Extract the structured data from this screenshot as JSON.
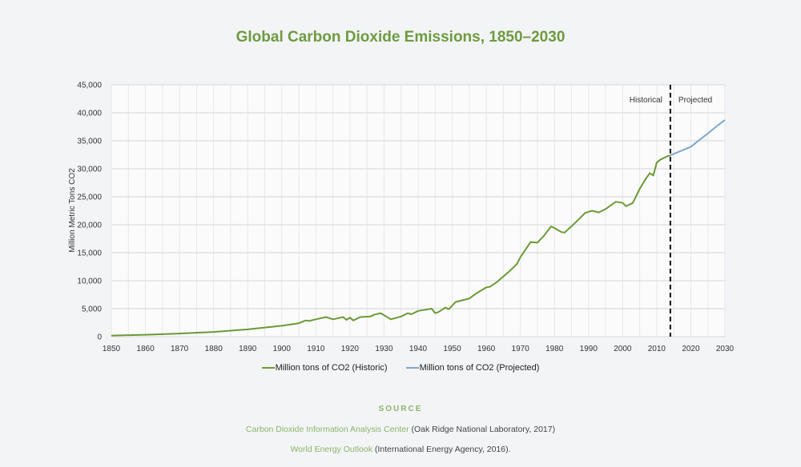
{
  "chart_data": {
    "type": "line",
    "title": "Global Carbon Dioxide Emissions, 1850–2030",
    "xlabel": "",
    "ylabel": "Million Metric Tons CO2",
    "xlim": [
      1850,
      2030
    ],
    "ylim": [
      0,
      45000
    ],
    "x_ticks": [
      "1850",
      "1860",
      "1870",
      "1880",
      "1890",
      "1900",
      "1910",
      "1920",
      "1930",
      "1940",
      "1950",
      "1960",
      "1970",
      "1980",
      "1990",
      "2000",
      "2010",
      "2020",
      "2030"
    ],
    "y_ticks": [
      "0",
      "5,000",
      "10,000",
      "15,000",
      "20,000",
      "25,000",
      "30,000",
      "35,000",
      "40,000",
      "45,000"
    ],
    "grid": true,
    "legend_position": "bottom",
    "annotations": {
      "divider_year": 2014,
      "left_label": "Historical",
      "right_label": "Projected"
    },
    "series": [
      {
        "name": "Million tons of CO2 (Historic)",
        "color": "#6b9a35",
        "x": [
          1850,
          1860,
          1870,
          1880,
          1890,
          1900,
          1905,
          1907,
          1908,
          1910,
          1913,
          1915,
          1918,
          1919,
          1920,
          1921,
          1923,
          1926,
          1927,
          1929,
          1932,
          1935,
          1937,
          1938,
          1940,
          1944,
          1945,
          1946,
          1948,
          1949,
          1951,
          1955,
          1957,
          1960,
          1961,
          1963,
          1967,
          1969,
          1970,
          1973,
          1975,
          1977,
          1979,
          1980,
          1982,
          1983,
          1986,
          1989,
          1991,
          1993,
          1995,
          1998,
          2000,
          2001,
          2003,
          2005,
          2007,
          2008,
          2009,
          2010,
          2011,
          2013,
          2014
        ],
        "y": [
          200,
          350,
          550,
          850,
          1300,
          1950,
          2400,
          2900,
          2800,
          3100,
          3500,
          3100,
          3500,
          3000,
          3400,
          2900,
          3500,
          3600,
          3900,
          4200,
          3100,
          3600,
          4200,
          4000,
          4600,
          5000,
          4200,
          4400,
          5200,
          4900,
          6200,
          6800,
          7700,
          8800,
          8900,
          9700,
          11800,
          13000,
          14200,
          16900,
          16800,
          18100,
          19700,
          19400,
          18700,
          18600,
          20300,
          22100,
          22500,
          22200,
          22800,
          24100,
          23900,
          23300,
          23900,
          26400,
          28400,
          29200,
          28800,
          31100,
          31600,
          32200,
          32400
        ]
      },
      {
        "name": "Million tons of CO2 (Projected)",
        "color": "#7ea6cf",
        "x": [
          2014,
          2016,
          2018,
          2020,
          2022,
          2025,
          2028,
          2030
        ],
        "y": [
          32400,
          32900,
          33400,
          33900,
          34900,
          36300,
          37800,
          38700
        ]
      }
    ]
  },
  "sources": {
    "heading": "SOURCE",
    "items": [
      {
        "link": "Carbon Dioxide Information Analysis Center",
        "rest": " (Oak Ridge National Laboratory, 2017)"
      },
      {
        "link": "World Energy Outlook",
        "rest": " (International Energy Agency, 2016)."
      }
    ]
  }
}
